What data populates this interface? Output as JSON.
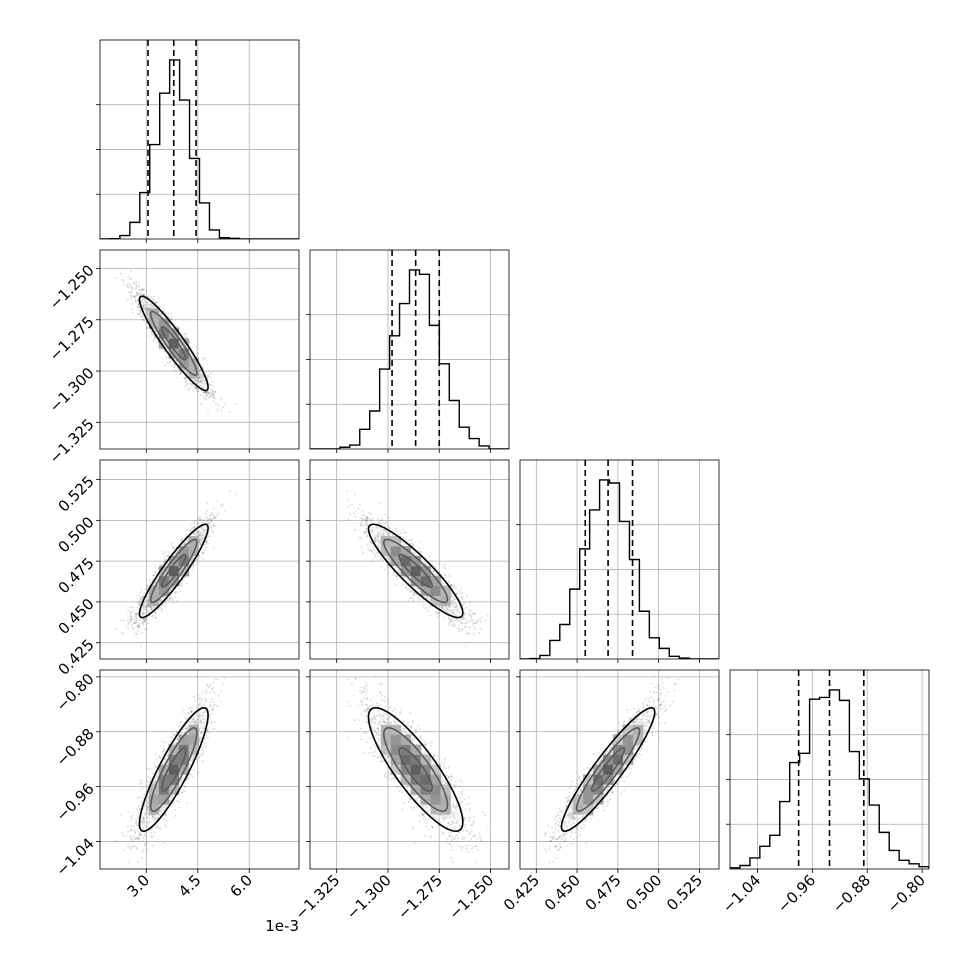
{
  "chart_data": {
    "type": "corner",
    "parameters": [
      {
        "range": [
          1.65,
          7.45
        ],
        "ticks": [
          3.0,
          4.5,
          6.0
        ],
        "tick_labels": [
          "3.0",
          "4.5",
          "6.0"
        ],
        "offset_label": "1e-3",
        "quantiles": [
          3.05,
          3.8,
          4.45
        ],
        "mean": 3.8,
        "sd": 0.5
      },
      {
        "range": [
          -1.338,
          -1.241
        ],
        "ticks": [
          -1.325,
          -1.3,
          -1.275,
          -1.25
        ],
        "tick_labels": [
          "−1.325",
          "−1.300",
          "−1.275",
          "−1.250"
        ],
        "offset_label": "",
        "quantiles": [
          -1.298,
          -1.2865,
          -1.275
        ],
        "mean": -1.2865,
        "sd": 0.0115
      },
      {
        "range": [
          0.415,
          0.537
        ],
        "ticks": [
          0.425,
          0.45,
          0.475,
          0.5,
          0.525
        ],
        "tick_labels": [
          "0.425",
          "0.450",
          "0.475",
          "0.500",
          "0.525"
        ],
        "offset_label": "",
        "quantiles": [
          0.455,
          0.469,
          0.484
        ],
        "mean": 0.469,
        "sd": 0.0143
      },
      {
        "range": [
          -1.08,
          -0.79
        ],
        "ticks": [
          -1.04,
          -0.96,
          -0.88,
          -0.8
        ],
        "tick_labels": [
          "−1.04",
          "−0.96",
          "−0.88",
          "−0.80"
        ],
        "offset_label": "",
        "quantiles": [
          -0.98,
          -0.935,
          -0.885
        ],
        "mean": -0.935,
        "sd": 0.045
      }
    ],
    "correlations": [
      [
        1,
        -0.93,
        0.92,
        0.88
      ],
      [
        -0.93,
        1,
        -0.9,
        -0.85
      ],
      [
        0.92,
        -0.9,
        1,
        0.93
      ],
      [
        0.88,
        -0.85,
        0.93,
        1
      ]
    ],
    "histogram_bins": 20,
    "grid": true,
    "quantile_lines": "dashed",
    "contour_levels": 3,
    "colors": {
      "lines": "#000000",
      "points": "#000000",
      "grid": "#b0b0b0"
    }
  }
}
